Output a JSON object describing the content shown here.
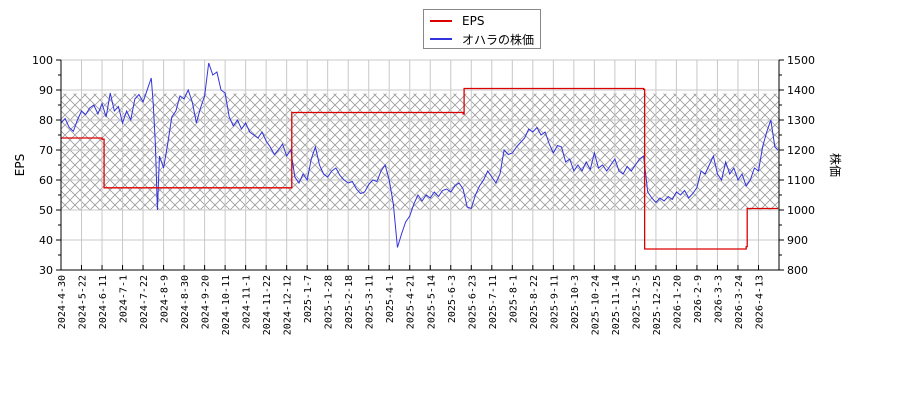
{
  "chart_data": {
    "type": "line",
    "title": "",
    "legend": {
      "position": "top-center",
      "entries": [
        {
          "label": "EPS",
          "color": "#dd0000"
        },
        {
          "label": "オハラの株価",
          "color": "#3333dd"
        }
      ]
    },
    "xlabel": "",
    "ylabel_left": "EPS",
    "ylabel_right": "株価",
    "ylim_left": [
      30,
      100
    ],
    "ylim_right": [
      800,
      1500
    ],
    "yticks_left": [
      30,
      40,
      50,
      60,
      70,
      80,
      90,
      100
    ],
    "yticks_right": [
      800,
      900,
      1000,
      1100,
      1200,
      1300,
      1400,
      1500
    ],
    "grid": true,
    "shaded_band_right_axis": [
      1000,
      1388
    ],
    "x_tick_labels": [
      "2024-4-30",
      "2024-5-22",
      "2024-6-11",
      "2024-7-1",
      "2024-7-22",
      "2024-8-9",
      "2024-8-30",
      "2024-9-20",
      "2024-10-11",
      "2024-11-1",
      "2024-11-22",
      "2024-12-12",
      "2025-1-7",
      "2025-1-28",
      "2025-2-18",
      "2025-3-11",
      "2025-4-1",
      "2025-4-21",
      "2025-5-14",
      "2025-6-3",
      "2025-6-23",
      "2025-7-11",
      "2025-8-1",
      "2025-8-22",
      "2025-9-11",
      "2025-10-3",
      "2025-10-24",
      "2025-11-14",
      "2025-12-5",
      "2025-12-25",
      "2026-1-20",
      "2026-2-9",
      "2026-3-3",
      "2026-3-24",
      "2026-4-13"
    ],
    "series": [
      {
        "name": "EPS",
        "axis": "left",
        "color": "#dd0000",
        "step": true,
        "points": [
          {
            "x": 0.0,
            "y": 74.0
          },
          {
            "x": 2.0,
            "y": 73.6
          },
          {
            "x": 2.1,
            "y": 57.4
          },
          {
            "x": 11.2,
            "y": 57.4
          },
          {
            "x": 11.25,
            "y": 82.5
          },
          {
            "x": 19.6,
            "y": 82.0
          },
          {
            "x": 19.65,
            "y": 90.5
          },
          {
            "x": 28.4,
            "y": 90.2
          },
          {
            "x": 28.45,
            "y": 37.0
          },
          {
            "x": 33.4,
            "y": 37.8
          },
          {
            "x": 33.45,
            "y": 50.5
          },
          {
            "x": 34.95,
            "y": 50.5
          }
        ]
      },
      {
        "name": "オハラの株価",
        "axis": "right",
        "color": "#3333dd",
        "points": [
          {
            "x": 0.0,
            "y": 1290
          },
          {
            "x": 0.2,
            "y": 1305
          },
          {
            "x": 0.4,
            "y": 1275
          },
          {
            "x": 0.6,
            "y": 1262
          },
          {
            "x": 0.8,
            "y": 1300
          },
          {
            "x": 1.0,
            "y": 1330
          },
          {
            "x": 1.2,
            "y": 1318
          },
          {
            "x": 1.4,
            "y": 1340
          },
          {
            "x": 1.6,
            "y": 1350
          },
          {
            "x": 1.8,
            "y": 1320
          },
          {
            "x": 2.0,
            "y": 1355
          },
          {
            "x": 2.2,
            "y": 1310
          },
          {
            "x": 2.4,
            "y": 1390
          },
          {
            "x": 2.6,
            "y": 1330
          },
          {
            "x": 2.8,
            "y": 1345
          },
          {
            "x": 3.0,
            "y": 1290
          },
          {
            "x": 3.2,
            "y": 1330
          },
          {
            "x": 3.4,
            "y": 1300
          },
          {
            "x": 3.6,
            "y": 1370
          },
          {
            "x": 3.8,
            "y": 1385
          },
          {
            "x": 4.0,
            "y": 1360
          },
          {
            "x": 4.2,
            "y": 1400
          },
          {
            "x": 4.4,
            "y": 1440
          },
          {
            "x": 4.5,
            "y": 1350
          },
          {
            "x": 4.6,
            "y": 1220
          },
          {
            "x": 4.7,
            "y": 1000
          },
          {
            "x": 4.8,
            "y": 1180
          },
          {
            "x": 5.0,
            "y": 1140
          },
          {
            "x": 5.2,
            "y": 1220
          },
          {
            "x": 5.4,
            "y": 1310
          },
          {
            "x": 5.6,
            "y": 1330
          },
          {
            "x": 5.8,
            "y": 1380
          },
          {
            "x": 6.0,
            "y": 1370
          },
          {
            "x": 6.2,
            "y": 1400
          },
          {
            "x": 6.4,
            "y": 1360
          },
          {
            "x": 6.6,
            "y": 1290
          },
          {
            "x": 6.8,
            "y": 1340
          },
          {
            "x": 7.0,
            "y": 1380
          },
          {
            "x": 7.2,
            "y": 1490
          },
          {
            "x": 7.4,
            "y": 1450
          },
          {
            "x": 7.6,
            "y": 1460
          },
          {
            "x": 7.8,
            "y": 1400
          },
          {
            "x": 8.0,
            "y": 1390
          },
          {
            "x": 8.2,
            "y": 1310
          },
          {
            "x": 8.4,
            "y": 1280
          },
          {
            "x": 8.6,
            "y": 1300
          },
          {
            "x": 8.8,
            "y": 1270
          },
          {
            "x": 9.0,
            "y": 1290
          },
          {
            "x": 9.2,
            "y": 1260
          },
          {
            "x": 9.4,
            "y": 1250
          },
          {
            "x": 9.6,
            "y": 1240
          },
          {
            "x": 9.8,
            "y": 1260
          },
          {
            "x": 10.0,
            "y": 1230
          },
          {
            "x": 10.2,
            "y": 1210
          },
          {
            "x": 10.4,
            "y": 1185
          },
          {
            "x": 10.6,
            "y": 1200
          },
          {
            "x": 10.8,
            "y": 1220
          },
          {
            "x": 11.0,
            "y": 1180
          },
          {
            "x": 11.2,
            "y": 1200
          },
          {
            "x": 11.4,
            "y": 1110
          },
          {
            "x": 11.6,
            "y": 1090
          },
          {
            "x": 11.8,
            "y": 1120
          },
          {
            "x": 12.0,
            "y": 1100
          },
          {
            "x": 12.2,
            "y": 1170
          },
          {
            "x": 12.4,
            "y": 1210
          },
          {
            "x": 12.6,
            "y": 1150
          },
          {
            "x": 12.8,
            "y": 1120
          },
          {
            "x": 13.0,
            "y": 1110
          },
          {
            "x": 13.2,
            "y": 1130
          },
          {
            "x": 13.4,
            "y": 1140
          },
          {
            "x": 13.6,
            "y": 1115
          },
          {
            "x": 13.8,
            "y": 1100
          },
          {
            "x": 14.0,
            "y": 1090
          },
          {
            "x": 14.2,
            "y": 1095
          },
          {
            "x": 14.4,
            "y": 1070
          },
          {
            "x": 14.6,
            "y": 1055
          },
          {
            "x": 14.8,
            "y": 1060
          },
          {
            "x": 15.0,
            "y": 1085
          },
          {
            "x": 15.2,
            "y": 1100
          },
          {
            "x": 15.4,
            "y": 1095
          },
          {
            "x": 15.6,
            "y": 1130
          },
          {
            "x": 15.8,
            "y": 1150
          },
          {
            "x": 16.0,
            "y": 1100
          },
          {
            "x": 16.2,
            "y": 1020
          },
          {
            "x": 16.4,
            "y": 875
          },
          {
            "x": 16.6,
            "y": 920
          },
          {
            "x": 16.8,
            "y": 960
          },
          {
            "x": 17.0,
            "y": 980
          },
          {
            "x": 17.2,
            "y": 1020
          },
          {
            "x": 17.4,
            "y": 1050
          },
          {
            "x": 17.6,
            "y": 1030
          },
          {
            "x": 17.8,
            "y": 1050
          },
          {
            "x": 18.0,
            "y": 1040
          },
          {
            "x": 18.2,
            "y": 1060
          },
          {
            "x": 18.4,
            "y": 1045
          },
          {
            "x": 18.6,
            "y": 1065
          },
          {
            "x": 18.8,
            "y": 1070
          },
          {
            "x": 19.0,
            "y": 1060
          },
          {
            "x": 19.2,
            "y": 1080
          },
          {
            "x": 19.4,
            "y": 1090
          },
          {
            "x": 19.6,
            "y": 1070
          },
          {
            "x": 19.8,
            "y": 1010
          },
          {
            "x": 20.0,
            "y": 1005
          },
          {
            "x": 20.2,
            "y": 1050
          },
          {
            "x": 20.4,
            "y": 1080
          },
          {
            "x": 20.6,
            "y": 1100
          },
          {
            "x": 20.8,
            "y": 1130
          },
          {
            "x": 21.0,
            "y": 1110
          },
          {
            "x": 21.2,
            "y": 1090
          },
          {
            "x": 21.4,
            "y": 1120
          },
          {
            "x": 21.6,
            "y": 1200
          },
          {
            "x": 21.8,
            "y": 1185
          },
          {
            "x": 22.0,
            "y": 1190
          },
          {
            "x": 22.2,
            "y": 1210
          },
          {
            "x": 22.4,
            "y": 1225
          },
          {
            "x": 22.6,
            "y": 1240
          },
          {
            "x": 22.8,
            "y": 1270
          },
          {
            "x": 23.0,
            "y": 1260
          },
          {
            "x": 23.2,
            "y": 1275
          },
          {
            "x": 23.4,
            "y": 1250
          },
          {
            "x": 23.6,
            "y": 1260
          },
          {
            "x": 23.8,
            "y": 1220
          },
          {
            "x": 24.0,
            "y": 1190
          },
          {
            "x": 24.2,
            "y": 1215
          },
          {
            "x": 24.4,
            "y": 1210
          },
          {
            "x": 24.6,
            "y": 1160
          },
          {
            "x": 24.8,
            "y": 1170
          },
          {
            "x": 25.0,
            "y": 1130
          },
          {
            "x": 25.2,
            "y": 1150
          },
          {
            "x": 25.4,
            "y": 1130
          },
          {
            "x": 25.6,
            "y": 1160
          },
          {
            "x": 25.8,
            "y": 1135
          },
          {
            "x": 26.0,
            "y": 1190
          },
          {
            "x": 26.2,
            "y": 1140
          },
          {
            "x": 26.4,
            "y": 1150
          },
          {
            "x": 26.6,
            "y": 1130
          },
          {
            "x": 26.8,
            "y": 1150
          },
          {
            "x": 27.0,
            "y": 1170
          },
          {
            "x": 27.2,
            "y": 1130
          },
          {
            "x": 27.4,
            "y": 1120
          },
          {
            "x": 27.6,
            "y": 1145
          },
          {
            "x": 27.8,
            "y": 1130
          },
          {
            "x": 28.0,
            "y": 1150
          },
          {
            "x": 28.2,
            "y": 1170
          },
          {
            "x": 28.4,
            "y": 1180
          },
          {
            "x": 28.6,
            "y": 1060
          },
          {
            "x": 28.8,
            "y": 1040
          },
          {
            "x": 29.0,
            "y": 1025
          },
          {
            "x": 29.2,
            "y": 1040
          },
          {
            "x": 29.4,
            "y": 1030
          },
          {
            "x": 29.6,
            "y": 1045
          },
          {
            "x": 29.8,
            "y": 1035
          },
          {
            "x": 30.0,
            "y": 1060
          },
          {
            "x": 30.2,
            "y": 1050
          },
          {
            "x": 30.4,
            "y": 1065
          },
          {
            "x": 30.6,
            "y": 1040
          },
          {
            "x": 30.8,
            "y": 1055
          },
          {
            "x": 31.0,
            "y": 1075
          },
          {
            "x": 31.2,
            "y": 1130
          },
          {
            "x": 31.4,
            "y": 1120
          },
          {
            "x": 31.6,
            "y": 1150
          },
          {
            "x": 31.8,
            "y": 1180
          },
          {
            "x": 32.0,
            "y": 1120
          },
          {
            "x": 32.2,
            "y": 1100
          },
          {
            "x": 32.4,
            "y": 1160
          },
          {
            "x": 32.6,
            "y": 1120
          },
          {
            "x": 32.8,
            "y": 1140
          },
          {
            "x": 33.0,
            "y": 1100
          },
          {
            "x": 33.2,
            "y": 1120
          },
          {
            "x": 33.4,
            "y": 1080
          },
          {
            "x": 33.6,
            "y": 1100
          },
          {
            "x": 33.8,
            "y": 1140
          },
          {
            "x": 34.0,
            "y": 1130
          },
          {
            "x": 34.2,
            "y": 1210
          },
          {
            "x": 34.4,
            "y": 1260
          },
          {
            "x": 34.6,
            "y": 1300
          },
          {
            "x": 34.8,
            "y": 1210
          },
          {
            "x": 34.95,
            "y": 1200
          }
        ]
      }
    ]
  }
}
